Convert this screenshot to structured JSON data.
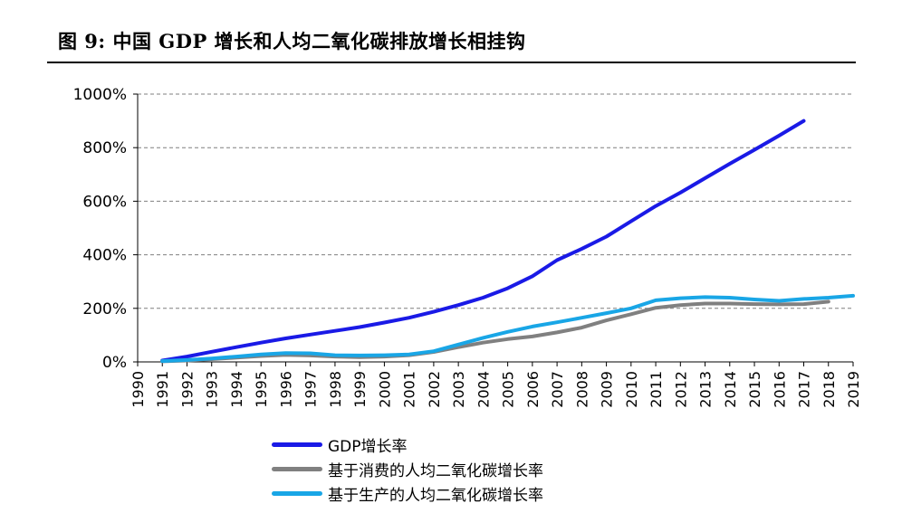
{
  "figure": {
    "title": "图 9: 中国 GDP 增长和人均二氧化碳排放增长相挂钩"
  },
  "chart_data": {
    "type": "line",
    "x": [
      "1990",
      "1991",
      "1992",
      "1993",
      "1994",
      "1995",
      "1996",
      "1997",
      "1998",
      "1999",
      "2000",
      "2001",
      "2002",
      "2003",
      "2004",
      "2005",
      "2006",
      "2007",
      "2008",
      "2009",
      "2010",
      "2011",
      "2012",
      "2013",
      "2014",
      "2015",
      "2016",
      "2017",
      "2018",
      "2019"
    ],
    "ylim": [
      0,
      1000
    ],
    "yticks": [
      0,
      200,
      400,
      600,
      800,
      1000
    ],
    "ytick_labels": [
      "0%",
      "200%",
      "400%",
      "600%",
      "800%",
      "1000%"
    ],
    "grid": true,
    "legend_position": "bottom",
    "series": [
      {
        "name": "GDP增长率",
        "color": "#1a1ae6",
        "values": [
          null,
          5,
          20,
          38,
          55,
          72,
          88,
          102,
          116,
          130,
          147,
          165,
          187,
          212,
          240,
          275,
          320,
          380,
          422,
          468,
          525,
          582,
          632,
          686,
          740,
          792,
          845,
          900,
          null,
          null
        ]
      },
      {
        "name": "基于消费的人均二氧化碳增长率",
        "color": "#808080",
        "values": [
          null,
          2,
          5,
          10,
          16,
          22,
          26,
          24,
          20,
          18,
          20,
          25,
          37,
          55,
          72,
          85,
          95,
          110,
          128,
          155,
          178,
          202,
          212,
          218,
          218,
          216,
          215,
          216,
          225,
          null
        ]
      },
      {
        "name": "基于生产的人均二氧化碳增长率",
        "color": "#19a6e6",
        "values": [
          null,
          3,
          7,
          13,
          20,
          28,
          33,
          32,
          25,
          24,
          25,
          28,
          40,
          65,
          90,
          112,
          132,
          148,
          165,
          182,
          200,
          230,
          238,
          242,
          240,
          233,
          228,
          235,
          240,
          247
        ]
      }
    ]
  }
}
